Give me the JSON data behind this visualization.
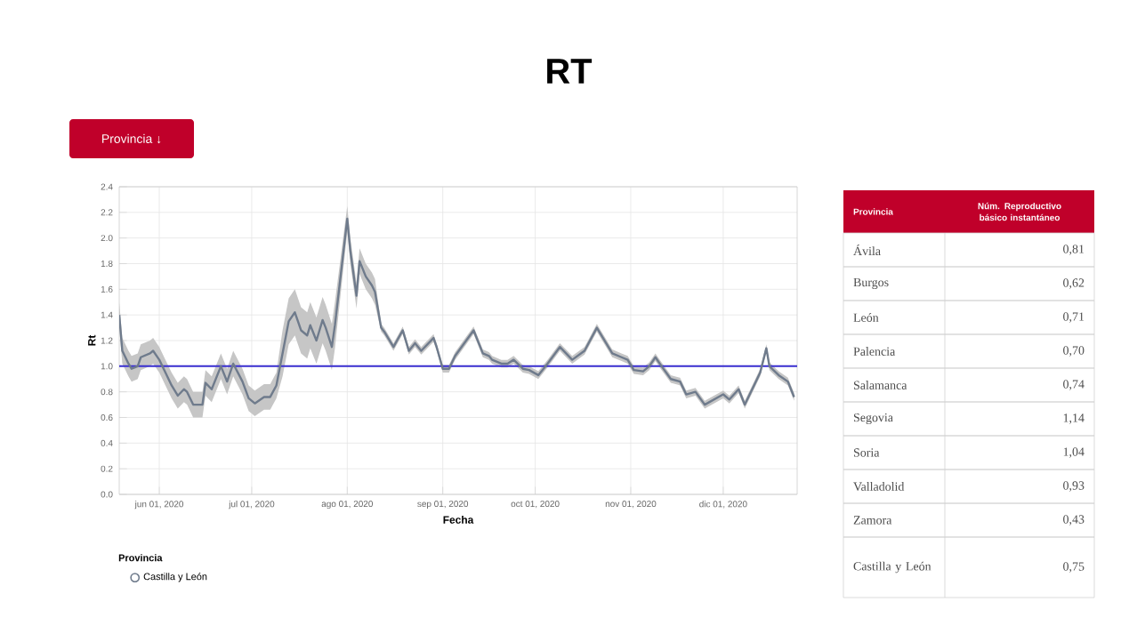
{
  "chart_data": [
    {
      "type": "line",
      "title": "RT",
      "xlabel": "Fecha",
      "ylabel": "Rt",
      "legend_title": "Provincia",
      "legend": "bottom",
      "grid": true,
      "annotations": [
        "Provincia ↓"
      ],
      "xlim": [
        "2020-05-19",
        "2020-12-25"
      ],
      "xticks": [
        {
          "value": "2020-06-01",
          "label": "jun 01, 2020"
        },
        {
          "value": "2020-07-01",
          "label": "jul 01, 2020"
        },
        {
          "value": "2020-08-01",
          "label": "ago 01, 2020"
        },
        {
          "value": "2020-09-01",
          "label": "sep 01, 2020"
        },
        {
          "value": "2020-10-01",
          "label": "oct 01, 2020"
        },
        {
          "value": "2020-11-01",
          "label": "nov 01, 2020"
        },
        {
          "value": "2020-12-01",
          "label": "dic 01, 2020"
        }
      ],
      "ylim": [
        0,
        2.4
      ],
      "yticks": [
        {
          "value": 0,
          "label": "0.0"
        },
        0.2,
        0.4,
        0.6,
        0.8,
        {
          "value": 1,
          "label": "1.0"
        },
        1.2,
        1.4,
        1.6,
        1.8,
        {
          "value": 2,
          "label": "2.0"
        },
        2.2,
        2.4
      ],
      "ref_lines": [
        {
          "axis": "y",
          "value": 1.0,
          "color": "#3a2fd0"
        }
      ],
      "x": [
        "2020-05-19",
        "2020-05-20",
        "2020-05-22",
        "2020-05-23",
        "2020-05-25",
        "2020-05-26",
        "2020-05-29",
        "2020-05-30",
        "2020-06-01",
        "2020-06-03",
        "2020-06-05",
        "2020-06-07",
        "2020-06-09",
        "2020-06-10",
        "2020-06-12",
        "2020-06-15",
        "2020-06-16",
        "2020-06-18",
        "2020-06-21",
        "2020-06-23",
        "2020-06-25",
        "2020-06-28",
        "2020-06-30",
        "2020-07-02",
        "2020-07-05",
        "2020-07-07",
        "2020-07-09",
        "2020-07-11",
        "2020-07-13",
        "2020-07-15",
        "2020-07-17",
        "2020-07-19",
        "2020-07-20",
        "2020-07-22",
        "2020-07-24",
        "2020-07-25",
        "2020-07-27",
        "2020-07-28",
        "2020-08-01",
        "2020-08-02",
        "2020-08-04",
        "2020-08-05",
        "2020-08-07",
        "2020-08-09",
        "2020-08-10",
        "2020-08-12",
        "2020-08-13",
        "2020-08-16",
        "2020-08-19",
        "2020-08-21",
        "2020-08-23",
        "2020-08-25",
        "2020-08-29",
        "2020-08-30",
        "2020-09-01",
        "2020-09-03",
        "2020-09-05",
        "2020-09-08",
        "2020-09-11",
        "2020-09-14",
        "2020-09-16",
        "2020-09-17",
        "2020-09-20",
        "2020-09-22",
        "2020-09-24",
        "2020-09-27",
        "2020-09-29",
        "2020-10-02",
        "2020-10-05",
        "2020-10-09",
        "2020-10-13",
        "2020-10-17",
        "2020-10-21",
        "2020-10-23",
        "2020-10-26",
        "2020-10-29",
        "2020-10-31",
        "2020-11-02",
        "2020-11-05",
        "2020-11-07",
        "2020-11-09",
        "2020-11-11",
        "2020-11-14",
        "2020-11-17",
        "2020-11-19",
        "2020-11-22",
        "2020-11-25",
        "2020-11-28",
        "2020-12-01",
        "2020-12-03",
        "2020-12-06",
        "2020-12-08",
        "2020-12-11",
        "2020-12-13",
        "2020-12-15",
        "2020-12-16",
        "2020-12-19",
        "2020-12-22",
        "2020-12-24"
      ],
      "series": [
        {
          "name": "Castilla y León",
          "color": "#6f7b8c",
          "values": [
            1.4,
            1.12,
            1.02,
            0.98,
            1.0,
            1.07,
            1.1,
            1.12,
            1.05,
            0.95,
            0.85,
            0.77,
            0.82,
            0.8,
            0.7,
            0.7,
            0.87,
            0.82,
            1.0,
            0.88,
            1.02,
            0.88,
            0.75,
            0.71,
            0.76,
            0.76,
            0.85,
            1.1,
            1.35,
            1.42,
            1.28,
            1.24,
            1.32,
            1.2,
            1.36,
            1.3,
            1.15,
            1.32,
            2.15,
            1.9,
            1.55,
            1.82,
            1.7,
            1.63,
            1.58,
            1.3,
            1.27,
            1.15,
            1.28,
            1.12,
            1.18,
            1.12,
            1.22,
            1.15,
            0.98,
            0.98,
            1.08,
            1.18,
            1.28,
            1.1,
            1.08,
            1.05,
            1.02,
            1.02,
            1.05,
            0.98,
            0.97,
            0.93,
            1.02,
            1.15,
            1.05,
            1.12,
            1.3,
            1.22,
            1.1,
            1.07,
            1.05,
            0.97,
            0.96,
            1.0,
            1.07,
            1.0,
            0.9,
            0.88,
            0.78,
            0.8,
            0.7,
            0.74,
            0.78,
            0.74,
            0.82,
            0.7,
            0.85,
            0.95,
            1.14,
            1.0,
            0.93,
            0.88,
            0.76
          ],
          "lower": [
            1.3,
            1.02,
            0.92,
            0.88,
            0.9,
            0.97,
            1.0,
            1.02,
            0.95,
            0.85,
            0.75,
            0.67,
            0.72,
            0.7,
            0.6,
            0.6,
            0.77,
            0.72,
            0.9,
            0.78,
            0.92,
            0.78,
            0.65,
            0.61,
            0.66,
            0.66,
            0.75,
            0.92,
            1.17,
            1.24,
            1.1,
            1.06,
            1.14,
            1.02,
            1.18,
            1.12,
            0.97,
            1.14,
            2.05,
            1.8,
            1.45,
            1.72,
            1.6,
            1.53,
            1.48,
            1.27,
            1.24,
            1.12,
            1.25,
            1.09,
            1.15,
            1.09,
            1.19,
            1.12,
            0.95,
            0.95,
            1.05,
            1.15,
            1.25,
            1.07,
            1.05,
            1.02,
            0.99,
            0.99,
            1.02,
            0.95,
            0.94,
            0.9,
            0.99,
            1.12,
            1.02,
            1.09,
            1.27,
            1.19,
            1.07,
            1.04,
            1.02,
            0.94,
            0.93,
            0.97,
            1.04,
            0.97,
            0.87,
            0.85,
            0.75,
            0.77,
            0.67,
            0.71,
            0.75,
            0.71,
            0.79,
            0.67,
            0.82,
            0.92,
            1.11,
            0.97,
            0.9,
            0.85,
            0.73
          ],
          "upper": [
            1.5,
            1.22,
            1.12,
            1.08,
            1.1,
            1.17,
            1.2,
            1.22,
            1.15,
            1.05,
            0.95,
            0.87,
            0.92,
            0.9,
            0.8,
            0.8,
            0.97,
            0.92,
            1.1,
            0.98,
            1.12,
            0.98,
            0.85,
            0.81,
            0.86,
            0.86,
            0.95,
            1.28,
            1.53,
            1.6,
            1.46,
            1.42,
            1.5,
            1.38,
            1.54,
            1.48,
            1.33,
            1.5,
            2.25,
            2.0,
            1.65,
            1.92,
            1.8,
            1.73,
            1.68,
            1.33,
            1.3,
            1.18,
            1.31,
            1.15,
            1.21,
            1.15,
            1.25,
            1.18,
            1.01,
            1.01,
            1.11,
            1.21,
            1.31,
            1.13,
            1.11,
            1.08,
            1.05,
            1.05,
            1.08,
            1.01,
            1.0,
            0.96,
            1.05,
            1.18,
            1.08,
            1.15,
            1.33,
            1.25,
            1.13,
            1.1,
            1.08,
            1.0,
            0.99,
            1.03,
            1.1,
            1.03,
            0.93,
            0.91,
            0.81,
            0.83,
            0.73,
            0.77,
            0.81,
            0.77,
            0.85,
            0.73,
            0.88,
            0.98,
            1.17,
            1.03,
            0.96,
            0.91,
            0.79
          ]
        }
      ]
    },
    {
      "type": "other",
      "annotations": [
        "Provincia",
        "Núm. Reproductivo básico instantáneo"
      ],
      "categories": [
        "Ávila",
        "Burgos",
        "León",
        "Palencia",
        "Salamanca",
        "Segovia",
        "Soria",
        "Valladolid",
        "Zamora",
        "Castilla y León"
      ],
      "value_labels": [
        "0,81",
        "0,62",
        "0,71",
        "0,70",
        "0,74",
        "1,14",
        "1,04",
        "0,93",
        "0,43",
        "0,75"
      ]
    }
  ]
}
